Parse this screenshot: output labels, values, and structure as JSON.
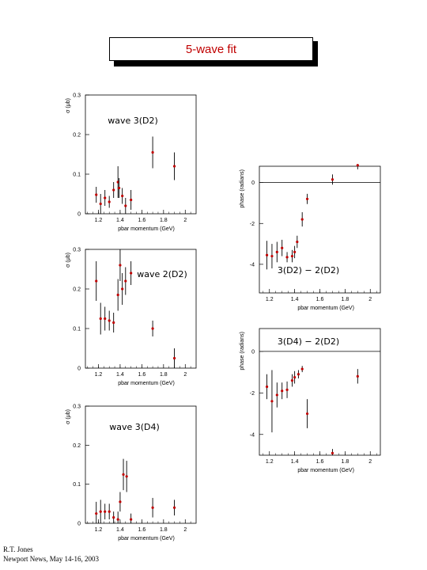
{
  "title": "5-wave fit",
  "footer": {
    "author": "R.T. Jones",
    "venue": "Newport News, May 14-16, 2003"
  },
  "colors": {
    "point": "#c00000",
    "errorbar": "#000000"
  },
  "chart_data": [
    {
      "type": "scatter",
      "annotation": "wave 3(D2)",
      "xlabel": "pbar momentum (GeV)",
      "ylabel": "σ (μb)",
      "xlim": [
        1.08,
        2.1
      ],
      "ylim": [
        0,
        0.3
      ],
      "xticks": [
        1.2,
        1.4,
        1.6,
        1.8,
        2
      ],
      "yticks": [
        0,
        0.1,
        0.2,
        0.3
      ],
      "points": [
        {
          "x": 1.18,
          "y": 0.048,
          "err": 0.02
        },
        {
          "x": 1.22,
          "y": 0.025,
          "err": 0.025
        },
        {
          "x": 1.26,
          "y": 0.04,
          "err": 0.02
        },
        {
          "x": 1.3,
          "y": 0.03,
          "err": 0.015
        },
        {
          "x": 1.34,
          "y": 0.06,
          "err": 0.02
        },
        {
          "x": 1.38,
          "y": 0.08,
          "err": 0.04
        },
        {
          "x": 1.39,
          "y": 0.065,
          "err": 0.025
        },
        {
          "x": 1.42,
          "y": 0.045,
          "err": 0.02
        },
        {
          "x": 1.45,
          "y": 0.02,
          "err": 0.02
        },
        {
          "x": 1.5,
          "y": 0.035,
          "err": 0.025
        },
        {
          "x": 1.7,
          "y": 0.155,
          "err": 0.04
        },
        {
          "x": 1.9,
          "y": 0.12,
          "err": 0.035
        }
      ]
    },
    {
      "type": "scatter",
      "annotation": "wave 2(D2)",
      "xlabel": "pbar momentum (GeV)",
      "ylabel": "σ (μb)",
      "xlim": [
        1.08,
        2.1
      ],
      "ylim": [
        0,
        0.3
      ],
      "xticks": [
        1.2,
        1.4,
        1.6,
        1.8,
        2
      ],
      "yticks": [
        0,
        0.1,
        0.2,
        0.3
      ],
      "points": [
        {
          "x": 1.18,
          "y": 0.22,
          "err": 0.05
        },
        {
          "x": 1.22,
          "y": 0.125,
          "err": 0.04
        },
        {
          "x": 1.26,
          "y": 0.125,
          "err": 0.03
        },
        {
          "x": 1.3,
          "y": 0.12,
          "err": 0.025
        },
        {
          "x": 1.34,
          "y": 0.115,
          "err": 0.025
        },
        {
          "x": 1.38,
          "y": 0.185,
          "err": 0.04
        },
        {
          "x": 1.4,
          "y": 0.26,
          "err": 0.04
        },
        {
          "x": 1.42,
          "y": 0.2,
          "err": 0.04
        },
        {
          "x": 1.45,
          "y": 0.22,
          "err": 0.035
        },
        {
          "x": 1.5,
          "y": 0.24,
          "err": 0.03
        },
        {
          "x": 1.7,
          "y": 0.1,
          "err": 0.02
        },
        {
          "x": 1.9,
          "y": 0.025,
          "err": 0.025
        }
      ]
    },
    {
      "type": "scatter",
      "annotation": "wave 3(D4)",
      "xlabel": "pbar momentum (GeV)",
      "ylabel": "σ (μb)",
      "xlim": [
        1.08,
        2.1
      ],
      "ylim": [
        0,
        0.3
      ],
      "xticks": [
        1.2,
        1.4,
        1.6,
        1.8,
        2
      ],
      "yticks": [
        0,
        0.1,
        0.2,
        0.3
      ],
      "points": [
        {
          "x": 1.18,
          "y": 0.025,
          "err": 0.03
        },
        {
          "x": 1.22,
          "y": 0.03,
          "err": 0.03
        },
        {
          "x": 1.26,
          "y": 0.03,
          "err": 0.02
        },
        {
          "x": 1.3,
          "y": 0.03,
          "err": 0.02
        },
        {
          "x": 1.34,
          "y": 0.015,
          "err": 0.015
        },
        {
          "x": 1.38,
          "y": 0.01,
          "err": 0.02
        },
        {
          "x": 1.4,
          "y": 0.055,
          "err": 0.025
        },
        {
          "x": 1.43,
          "y": 0.125,
          "err": 0.04
        },
        {
          "x": 1.46,
          "y": 0.12,
          "err": 0.04
        },
        {
          "x": 1.5,
          "y": 0.01,
          "err": 0.015
        },
        {
          "x": 1.7,
          "y": 0.04,
          "err": 0.025
        },
        {
          "x": 1.9,
          "y": 0.04,
          "err": 0.02
        }
      ]
    },
    {
      "type": "scatter",
      "annotation": "3(D2) − 2(D2)",
      "xlabel": "pbar momentum (GeV)",
      "ylabel": "phase (radians)",
      "xlim": [
        1.12,
        2.08
      ],
      "ylim": [
        -5.4,
        0.8
      ],
      "xticks": [
        1.2,
        1.4,
        1.6,
        1.8,
        2
      ],
      "yticks": [
        -4,
        -2,
        0
      ],
      "hline": 0,
      "points": [
        {
          "x": 1.18,
          "y": -3.55,
          "err": 0.7
        },
        {
          "x": 1.22,
          "y": -3.6,
          "err": 0.6
        },
        {
          "x": 1.26,
          "y": -3.4,
          "err": 0.5
        },
        {
          "x": 1.3,
          "y": -3.2,
          "err": 0.4
        },
        {
          "x": 1.34,
          "y": -3.65,
          "err": 0.25
        },
        {
          "x": 1.38,
          "y": -3.6,
          "err": 0.3
        },
        {
          "x": 1.4,
          "y": -3.4,
          "err": 0.3
        },
        {
          "x": 1.42,
          "y": -2.9,
          "err": 0.3
        },
        {
          "x": 1.46,
          "y": -1.8,
          "err": 0.35
        },
        {
          "x": 1.5,
          "y": -0.8,
          "err": 0.25
        },
        {
          "x": 1.7,
          "y": 0.15,
          "err": 0.25
        },
        {
          "x": 1.9,
          "y": 0.85,
          "err": 0.2
        }
      ]
    },
    {
      "type": "scatter",
      "annotation": "3(D4) − 2(D2)",
      "xlabel": "pbar momentum (GeV)",
      "ylabel": "phase (radians)",
      "xlim": [
        1.12,
        2.08
      ],
      "ylim": [
        -5.0,
        1.1
      ],
      "xticks": [
        1.2,
        1.4,
        1.6,
        1.8,
        2
      ],
      "yticks": [
        -4,
        -2,
        0
      ],
      "hline": 0,
      "points": [
        {
          "x": 1.18,
          "y": -1.7,
          "err": 0.6
        },
        {
          "x": 1.22,
          "y": -2.4,
          "err": 1.5
        },
        {
          "x": 1.26,
          "y": -2.1,
          "err": 0.6
        },
        {
          "x": 1.3,
          "y": -1.9,
          "err": 0.4
        },
        {
          "x": 1.34,
          "y": -1.85,
          "err": 0.4
        },
        {
          "x": 1.38,
          "y": -1.4,
          "err": 0.3
        },
        {
          "x": 1.4,
          "y": -1.25,
          "err": 0.3
        },
        {
          "x": 1.43,
          "y": -1.1,
          "err": 0.2
        },
        {
          "x": 1.46,
          "y": -0.85,
          "err": 0.15
        },
        {
          "x": 1.5,
          "y": -3.0,
          "err": 0.7
        },
        {
          "x": 1.7,
          "y": -4.9,
          "err": 0.2
        },
        {
          "x": 1.9,
          "y": -1.2,
          "err": 0.35
        }
      ]
    }
  ]
}
